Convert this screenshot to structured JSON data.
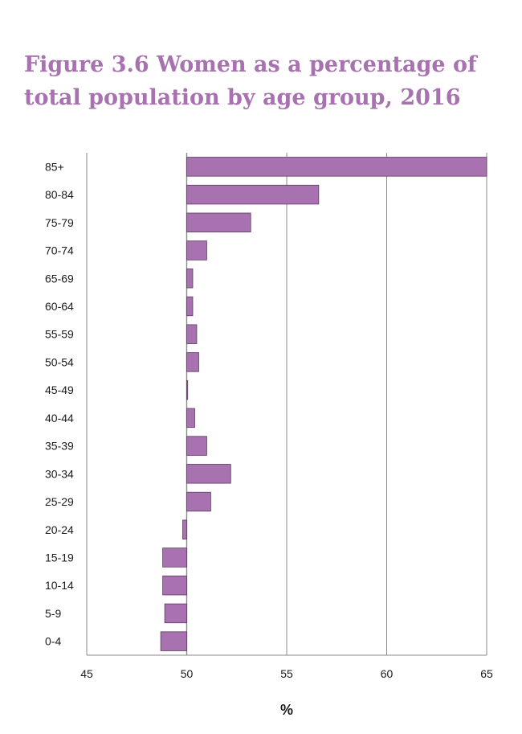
{
  "page": {
    "title_line1": "Figure 3.6  Women as a percentage of",
    "title_line2": "total population by age group, 2016"
  },
  "colors": {
    "title": "#a872b0",
    "bar_fill": "#a872b0",
    "bar_stroke": "#5a3a60",
    "gridline": "#8a8a8a"
  },
  "chart_data": {
    "type": "bar",
    "orientation": "horizontal",
    "title": "Figure 3.6  Women as a percentage of total population by age group, 2016",
    "xlabel": "%",
    "ylabel": "",
    "xlim": [
      45,
      65
    ],
    "baseline": 50,
    "xticks": [
      45,
      50,
      55,
      60,
      65
    ],
    "grid": true,
    "categories": [
      "85+",
      "80-84",
      "75-79",
      "70-74",
      "65-69",
      "60-64",
      "55-59",
      "50-54",
      "45-49",
      "40-44",
      "35-39",
      "30-34",
      "25-29",
      "20-24",
      "15-19",
      "10-14",
      "5-9",
      "0-4"
    ],
    "values": [
      65.1,
      56.6,
      53.2,
      51.0,
      50.3,
      50.3,
      50.5,
      50.6,
      50.05,
      50.4,
      51.0,
      52.2,
      51.2,
      49.8,
      48.8,
      48.8,
      48.9,
      48.7
    ]
  }
}
